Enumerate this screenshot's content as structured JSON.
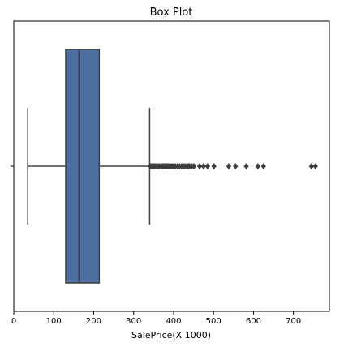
{
  "chart_data": {
    "type": "box",
    "title": "Box Plot",
    "xlabel": "SalePrice(X 1000)",
    "ylabel": "",
    "xlim": [
      0,
      790
    ],
    "xticks": [
      0,
      100,
      200,
      300,
      400,
      500,
      600,
      700
    ],
    "orientation": "horizontal",
    "grid": false,
    "color": "#4c6ea0",
    "edge_color": "#404040",
    "series": [
      {
        "whisker_low": 34.9,
        "q1": 129.9,
        "median": 163.0,
        "q3": 214.0,
        "whisker_high": 340.0,
        "outliers": [
          342,
          345,
          348,
          350,
          352,
          355,
          359,
          362,
          365,
          370,
          372,
          375,
          378,
          380,
          383,
          385,
          388,
          392,
          395,
          398,
          402,
          405,
          410,
          415,
          420,
          423,
          426,
          430,
          435,
          438,
          440,
          446,
          451,
          465,
          475,
          485,
          501,
          538,
          555,
          582,
          611,
          625,
          745,
          755
        ]
      }
    ]
  }
}
